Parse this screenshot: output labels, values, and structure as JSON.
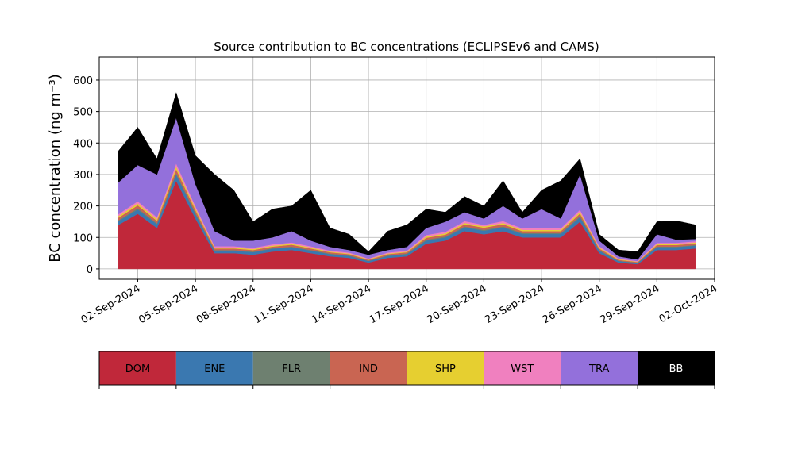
{
  "chart_data": {
    "type": "stacked_area",
    "title": "Source contribution to BC concentrations (ECLIPSEv6 and CAMS)",
    "y_label": "BC concentration (ng m⁻³)",
    "x": [
      "2024-09-01",
      "2024-09-02",
      "2024-09-03",
      "2024-09-04",
      "2024-09-05",
      "2024-09-06",
      "2024-09-07",
      "2024-09-08",
      "2024-09-09",
      "2024-09-10",
      "2024-09-11",
      "2024-09-12",
      "2024-09-13",
      "2024-09-14",
      "2024-09-15",
      "2024-09-16",
      "2024-09-17",
      "2024-09-18",
      "2024-09-19",
      "2024-09-20",
      "2024-09-21",
      "2024-09-22",
      "2024-09-23",
      "2024-09-24",
      "2024-09-25",
      "2024-09-26",
      "2024-09-27",
      "2024-09-28",
      "2024-09-29",
      "2024-09-30",
      "2024-10-01"
    ],
    "series": [
      {
        "name": "DOM",
        "color": "#c0283a",
        "values": [
          140,
          175,
          130,
          280,
          160,
          50,
          50,
          45,
          55,
          60,
          50,
          40,
          35,
          20,
          35,
          40,
          80,
          90,
          120,
          110,
          120,
          100,
          100,
          100,
          150,
          50,
          20,
          15,
          60,
          60,
          65
        ]
      },
      {
        "name": "ENE",
        "color": "#3a78b0",
        "values": [
          12,
          14,
          12,
          20,
          14,
          8,
          8,
          8,
          9,
          9,
          8,
          7,
          6,
          5,
          6,
          7,
          10,
          10,
          12,
          11,
          12,
          11,
          11,
          11,
          14,
          8,
          5,
          4,
          9,
          9,
          9
        ]
      },
      {
        "name": "FLR",
        "color": "#6e8070",
        "values": [
          3,
          4,
          3,
          5,
          4,
          2,
          2,
          2,
          2,
          2,
          2,
          2,
          2,
          1,
          2,
          2,
          3,
          3,
          3,
          3,
          3,
          3,
          3,
          3,
          4,
          2,
          1,
          1,
          2,
          2,
          2
        ]
      },
      {
        "name": "IND",
        "color": "#c96552",
        "values": [
          8,
          9,
          8,
          12,
          9,
          5,
          5,
          5,
          5,
          6,
          5,
          4,
          4,
          3,
          4,
          4,
          6,
          6,
          7,
          7,
          7,
          6,
          6,
          6,
          8,
          5,
          3,
          2,
          5,
          5,
          5
        ]
      },
      {
        "name": "SHP",
        "color": "#e6cf30",
        "values": [
          5,
          6,
          5,
          8,
          6,
          3,
          3,
          3,
          3,
          3,
          3,
          2,
          2,
          2,
          2,
          2,
          4,
          4,
          4,
          4,
          4,
          4,
          4,
          4,
          5,
          3,
          2,
          1,
          3,
          3,
          3
        ]
      },
      {
        "name": "WST",
        "color": "#f080bf",
        "values": [
          6,
          7,
          6,
          10,
          7,
          4,
          4,
          4,
          4,
          4,
          4,
          3,
          3,
          2,
          3,
          3,
          5,
          5,
          6,
          5,
          6,
          5,
          5,
          5,
          7,
          4,
          2,
          2,
          4,
          4,
          4
        ]
      },
      {
        "name": "TRA",
        "color": "#9370db",
        "values": [
          101,
          115,
          136,
          145,
          70,
          48,
          18,
          23,
          22,
          36,
          18,
          12,
          8,
          12,
          8,
          12,
          22,
          32,
          28,
          20,
          48,
          31,
          61,
          31,
          112,
          18,
          7,
          5,
          27,
          10,
          7
        ]
      },
      {
        "name": "BB",
        "color": "#000000",
        "values": [
          100,
          120,
          50,
          80,
          90,
          180,
          160,
          60,
          90,
          80,
          160,
          60,
          50,
          10,
          60,
          70,
          60,
          30,
          50,
          40,
          80,
          20,
          60,
          120,
          50,
          20,
          20,
          25,
          40,
          60,
          45
        ]
      }
    ],
    "xlim": [
      "2024-08-31",
      "2024-10-02"
    ],
    "xticks": [
      {
        "value": "2024-09-02",
        "label": "02-Sep-2024"
      },
      {
        "value": "2024-09-05",
        "label": "05-Sep-2024"
      },
      {
        "value": "2024-09-08",
        "label": "08-Sep-2024"
      },
      {
        "value": "2024-09-11",
        "label": "11-Sep-2024"
      },
      {
        "value": "2024-09-14",
        "label": "14-Sep-2024"
      },
      {
        "value": "2024-09-17",
        "label": "17-Sep-2024"
      },
      {
        "value": "2024-09-20",
        "label": "20-Sep-2024"
      },
      {
        "value": "2024-09-23",
        "label": "23-Sep-2024"
      },
      {
        "value": "2024-09-26",
        "label": "26-Sep-2024"
      },
      {
        "value": "2024-09-29",
        "label": "29-Sep-2024"
      },
      {
        "value": "2024-10-02",
        "label": "02-Oct-2024"
      }
    ],
    "ylim": [
      -33,
      673
    ],
    "yticks": [
      0,
      100,
      200,
      300,
      400,
      500,
      600
    ],
    "grid": true,
    "legend": "bottom"
  }
}
